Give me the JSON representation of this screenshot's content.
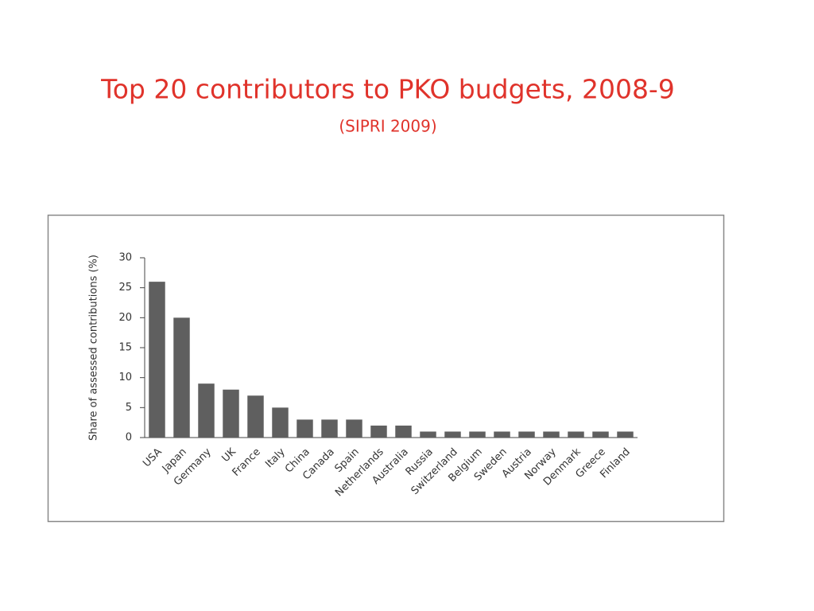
{
  "chart_data": {
    "type": "bar",
    "title": "Top 20 contributors to PKO budgets, 2008-9",
    "subtitle": "(SIPRI 2009)",
    "y_label": "Share of assessed contributions (%)",
    "categories": [
      "USA",
      "Japan",
      "Germany",
      "UK",
      "France",
      "Italy",
      "China",
      "Canada",
      "Spain",
      "Netherlands",
      "Australia",
      "Russia",
      "Switzerland",
      "Belgium",
      "Sweden",
      "Austria",
      "Norway",
      "Denmark",
      "Greece",
      "Finland"
    ],
    "values": [
      26,
      20,
      9,
      8,
      7,
      5,
      3,
      3,
      3,
      2,
      2,
      1,
      1,
      1,
      1,
      1,
      1,
      1,
      1,
      1
    ],
    "color": "#5f5f5f",
    "ylim": [
      0,
      30
    ],
    "yticks": [
      0,
      5,
      10,
      15,
      20,
      25,
      30
    ],
    "grid": false
  }
}
